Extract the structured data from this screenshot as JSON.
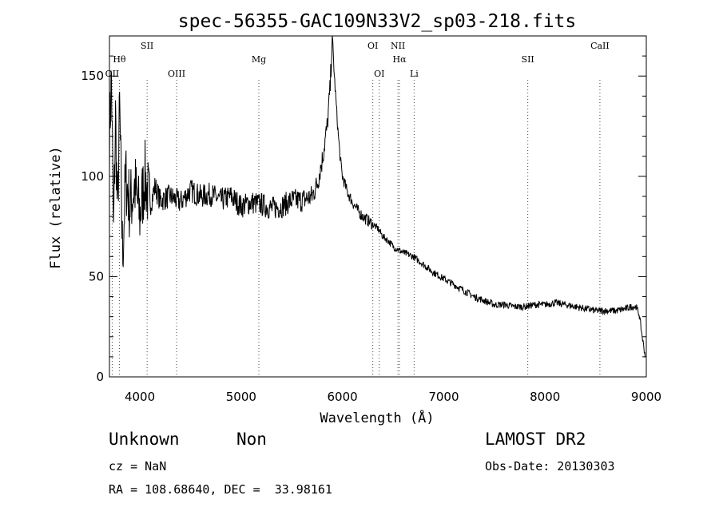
{
  "chart_data": {
    "type": "line",
    "title": "spec-56355-GAC109N33V2_sp03-218.fits",
    "xlabel": "Wavelength (Å)",
    "ylabel": "Flux (relative)",
    "xlim": [
      3700,
      9000
    ],
    "ylim": [
      0,
      1700
    ],
    "x_ticks": [
      4000,
      5000,
      6000,
      7000,
      8000,
      9000
    ],
    "y_ticks": [
      0,
      500,
      1000,
      1500
    ],
    "y_tick_labels": [
      "0",
      "50",
      "100",
      "150"
    ],
    "grid": false,
    "spectral_lines": [
      {
        "name": "OII",
        "wavelength": 3727,
        "row": 2
      },
      {
        "name": "Hθ",
        "wavelength": 3798,
        "row": 1
      },
      {
        "name": "SII",
        "wavelength": 4072,
        "row": 0
      },
      {
        "name": "OIII",
        "wavelength": 4363,
        "row": 2
      },
      {
        "name": "Mg",
        "wavelength": 5175,
        "row": 1
      },
      {
        "name": "OI",
        "wavelength": 6300,
        "row": 0
      },
      {
        "name": "OI",
        "wavelength": 6364,
        "row": 2
      },
      {
        "name": "NII",
        "wavelength": 6548,
        "row": 0
      },
      {
        "name": "Hα",
        "wavelength": 6563,
        "row": 1
      },
      {
        "name": "Li",
        "wavelength": 6708,
        "row": 2
      },
      {
        "name": "SII",
        "wavelength": 7830,
        "row": 1
      },
      {
        "name": "CaII",
        "wavelength": 8542,
        "row": 0
      }
    ],
    "series": [
      {
        "x": [
          3700,
          3720,
          3740,
          3760,
          3780,
          3800,
          3830,
          3860,
          3900,
          3950,
          4000,
          4050,
          4100,
          4150,
          4200,
          4300,
          4400,
          4500,
          4600,
          4700,
          4800,
          4900,
          5000,
          5100,
          5200,
          5300,
          5400,
          5500,
          5600,
          5700,
          5750,
          5800,
          5850,
          5880,
          5900,
          5920,
          5940,
          5960,
          5980,
          6000,
          6050,
          6100,
          6150,
          6200,
          6250,
          6300,
          6350,
          6400,
          6450,
          6500,
          6600,
          6700,
          6800,
          6900,
          7000,
          7100,
          7200,
          7300,
          7400,
          7500,
          7600,
          7700,
          7800,
          7900,
          8000,
          8100,
          8200,
          8300,
          8400,
          8500,
          8600,
          8700,
          8800,
          8850,
          8900,
          8930,
          8960,
          8990
        ],
        "y": [
          1200,
          1500,
          700,
          1300,
          800,
          1350,
          600,
          1000,
          850,
          950,
          800,
          1000,
          850,
          950,
          880,
          900,
          870,
          930,
          900,
          910,
          880,
          900,
          850,
          870,
          860,
          840,
          850,
          880,
          880,
          900,
          960,
          1080,
          1250,
          1450,
          1700,
          1500,
          1350,
          1200,
          1080,
          1000,
          920,
          870,
          830,
          800,
          780,
          760,
          740,
          700,
          680,
          650,
          620,
          600,
          560,
          520,
          490,
          460,
          430,
          400,
          380,
          360,
          360,
          350,
          350,
          360,
          360,
          370,
          360,
          350,
          340,
          330,
          330,
          330,
          340,
          350,
          350,
          310,
          200,
          100
        ]
      }
    ]
  },
  "info": {
    "classification": "Unknown",
    "subclass": "Non",
    "survey": "LAMOST DR2",
    "cz": "cz = NaN",
    "obs_date": "Obs-Date: 20130303",
    "coords": "RA = 108.68640, DEC =  33.98161"
  }
}
